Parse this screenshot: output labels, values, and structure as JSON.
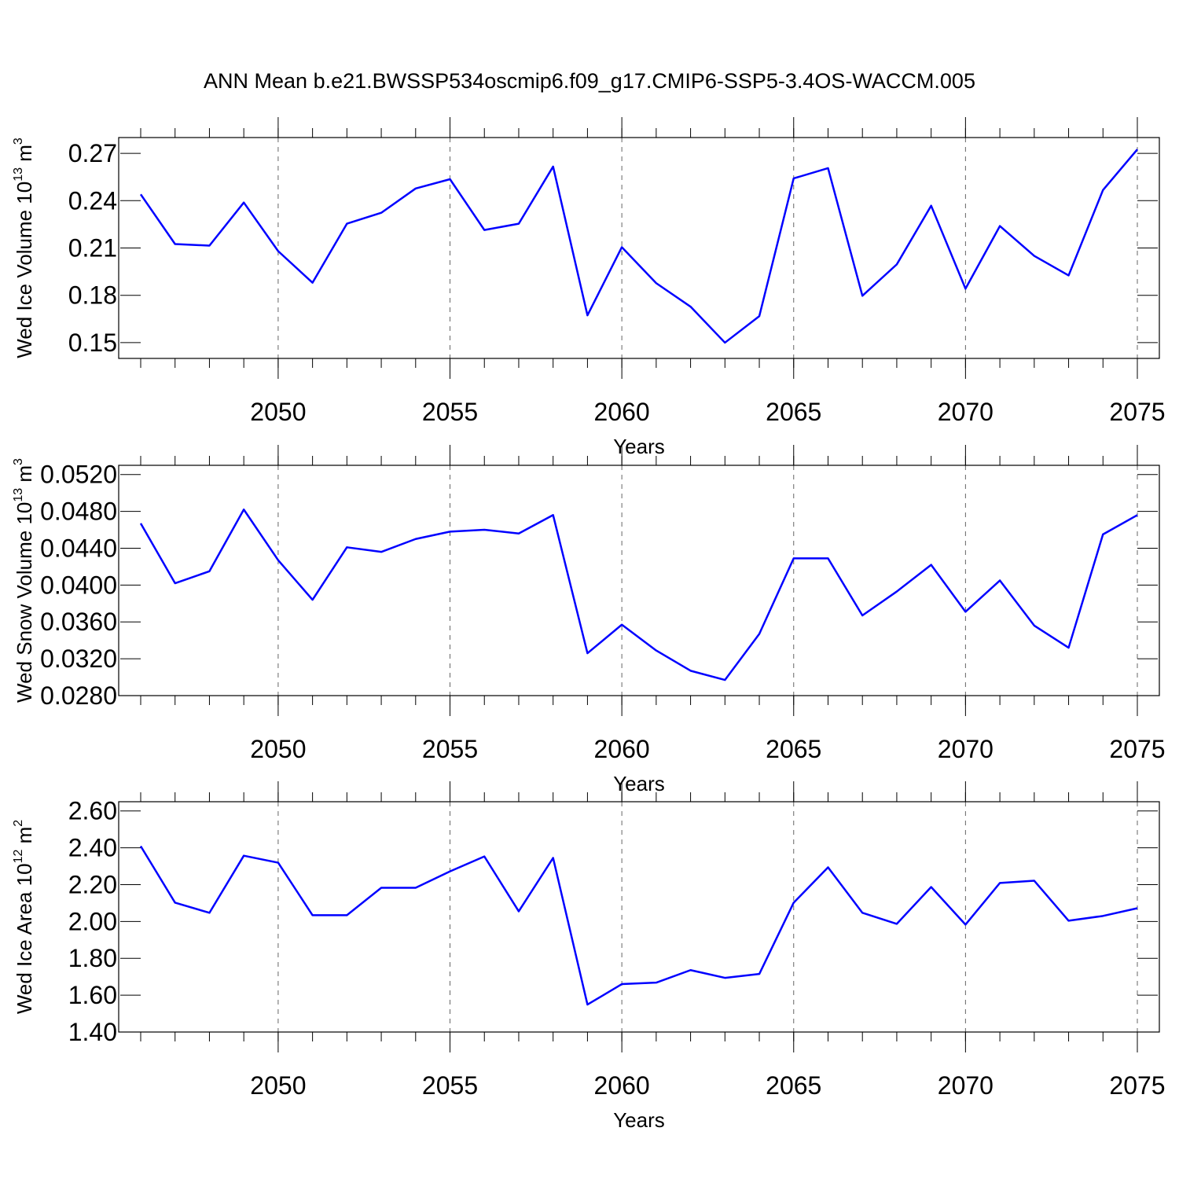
{
  "chart_data": [
    {
      "type": "line",
      "title": "ANN Mean b.e21.BWSSP534oscmip6.f09_g17.CMIP6-SSP5-3.4OS-WACCM.005",
      "x_label": "Years",
      "y_label": {
        "text": "Wed Ice Volume 10",
        "exponent": "13",
        "unit": " m",
        "unit_exponent": "3"
      },
      "x": [
        2046,
        2047,
        2048,
        2049,
        2050,
        2051,
        2052,
        2053,
        2054,
        2055,
        2056,
        2057,
        2058,
        2059,
        2060,
        2061,
        2062,
        2063,
        2064,
        2065,
        2066,
        2067,
        2068,
        2069,
        2070,
        2071,
        2072,
        2073,
        2074,
        2075
      ],
      "series": [
        {
          "color": "#0000ff",
          "values": [
            0.244,
            0.2125,
            0.2115,
            0.2388,
            0.208,
            0.188,
            0.2254,
            0.2323,
            0.2477,
            0.2536,
            0.2214,
            0.2254,
            0.2616,
            0.1673,
            0.2105,
            0.1877,
            0.1728,
            0.15,
            0.1668,
            0.2541,
            0.2606,
            0.1797,
            0.1996,
            0.2368,
            0.1842,
            0.2239,
            0.205,
            0.1926,
            0.2467,
            0.2725
          ]
        }
      ],
      "xlim": [
        2046,
        2075
      ],
      "xticks": [
        2050,
        2055,
        2060,
        2065,
        2070,
        2075
      ],
      "ylim": [
        0.14,
        0.28
      ],
      "yticks": [
        0.15,
        0.18,
        0.21,
        0.24,
        0.27
      ],
      "grid": "x-dashed"
    },
    {
      "type": "line",
      "x_label": "Years",
      "y_label": {
        "text": "Wed Snow Volume 10",
        "exponent": "13",
        "unit": " m",
        "unit_exponent": "3"
      },
      "x": [
        2046,
        2047,
        2048,
        2049,
        2050,
        2051,
        2052,
        2053,
        2054,
        2055,
        2056,
        2057,
        2058,
        2059,
        2060,
        2061,
        2062,
        2063,
        2064,
        2065,
        2066,
        2067,
        2068,
        2069,
        2070,
        2071,
        2072,
        2073,
        2074,
        2075
      ],
      "series": [
        {
          "color": "#0000ff",
          "values": [
            0.0467,
            0.0402,
            0.0415,
            0.0482,
            0.0427,
            0.0384,
            0.0441,
            0.0436,
            0.045,
            0.0458,
            0.046,
            0.0456,
            0.0476,
            0.0326,
            0.0357,
            0.0329,
            0.0307,
            0.0297,
            0.0347,
            0.0429,
            0.0429,
            0.0367,
            0.0393,
            0.0422,
            0.0371,
            0.0405,
            0.0356,
            0.0332,
            0.0455,
            0.0476
          ]
        }
      ],
      "xlim": [
        2046,
        2075
      ],
      "xticks": [
        2050,
        2055,
        2060,
        2065,
        2070,
        2075
      ],
      "ylim": [
        0.028,
        0.053
      ],
      "yticks": [
        {
          "value": 0.028,
          "label": "0.0280"
        },
        {
          "value": 0.032,
          "label": "0.0320"
        },
        {
          "value": 0.036,
          "label": "0.0360"
        },
        {
          "value": 0.04,
          "label": "0.0400"
        },
        {
          "value": 0.044,
          "label": "0.0440"
        },
        {
          "value": 0.048,
          "label": "0.0480"
        },
        {
          "value": 0.052,
          "label": "0.0520"
        }
      ],
      "grid": "x-dashed"
    },
    {
      "type": "line",
      "x_label": "Years",
      "y_label": {
        "text": "Wed Ice Area 10",
        "exponent": "12",
        "unit": " m",
        "unit_exponent": "2"
      },
      "x": [
        2046,
        2047,
        2048,
        2049,
        2050,
        2051,
        2052,
        2053,
        2054,
        2055,
        2056,
        2057,
        2058,
        2059,
        2060,
        2061,
        2062,
        2063,
        2064,
        2065,
        2066,
        2067,
        2068,
        2069,
        2070,
        2071,
        2072,
        2073,
        2074,
        2075
      ],
      "series": [
        {
          "color": "#0000ff",
          "values": [
            2.409,
            2.102,
            2.047,
            2.357,
            2.319,
            2.034,
            2.034,
            2.183,
            2.183,
            2.272,
            2.353,
            2.055,
            2.345,
            1.549,
            1.66,
            1.668,
            1.736,
            1.694,
            1.715,
            2.102,
            2.294,
            2.047,
            1.987,
            2.187,
            1.983,
            2.209,
            2.221,
            2.004,
            2.03,
            2.072
          ]
        }
      ],
      "xlim": [
        2046,
        2075
      ],
      "xticks": [
        2050,
        2055,
        2060,
        2065,
        2070,
        2075
      ],
      "ylim": [
        1.4,
        2.65
      ],
      "yticks": [
        {
          "value": 1.4,
          "label": "1.40"
        },
        {
          "value": 1.6,
          "label": "1.60"
        },
        {
          "value": 1.8,
          "label": "1.80"
        },
        {
          "value": 2.0,
          "label": "2.00"
        },
        {
          "value": 2.2,
          "label": "2.20"
        },
        {
          "value": 2.4,
          "label": "2.40"
        },
        {
          "value": 2.6,
          "label": "2.60"
        }
      ],
      "grid": "x-dashed"
    }
  ]
}
